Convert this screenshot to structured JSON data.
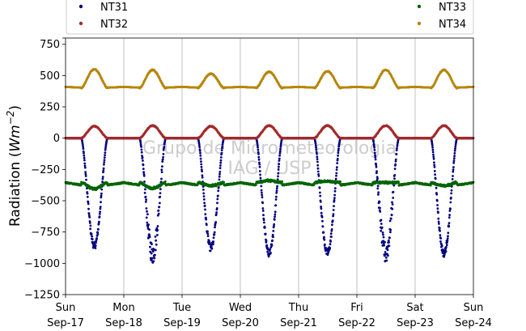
{
  "chart_data": {
    "type": "scatter",
    "title": "",
    "ylabel": "Radiation (Wm⁻²)",
    "ylabel_parts": {
      "prefix": "Radiation (",
      "var": "Wm",
      "exp": "−2",
      "suffix": ")"
    },
    "xlabel": "",
    "ylim": [
      -1250,
      800
    ],
    "xlim": [
      0,
      7
    ],
    "grid": {
      "x": true,
      "y": false
    },
    "legend": {
      "placement": "top",
      "columns": 2
    },
    "y_ticks": [
      800,
      750,
      500,
      250,
      0,
      -250,
      -500,
      -750,
      -1000,
      -1250
    ],
    "y_tick_labels": [
      "",
      "750",
      "500",
      "250",
      "0",
      "−250",
      "−500",
      "−750",
      "−1000",
      "−1250"
    ],
    "x_ticks": [
      {
        "x": 0,
        "day": "Sun",
        "date": "Sep-17"
      },
      {
        "x": 1,
        "day": "Mon",
        "date": "Sep-18"
      },
      {
        "x": 2,
        "day": "Tue",
        "date": "Sep-19"
      },
      {
        "x": 3,
        "day": "Wed",
        "date": "Sep-20"
      },
      {
        "x": 4,
        "day": "Thu",
        "date": "Sep-21"
      },
      {
        "x": 5,
        "day": "Fri",
        "date": "Sep-22"
      },
      {
        "x": 6,
        "day": "Sat",
        "date": "Sep-23"
      },
      {
        "x": 7,
        "day": "Sun",
        "date": "Sep-24"
      }
    ],
    "watermark": [
      "Grupo de Micrometeorologia",
      "IAG / USP"
    ],
    "series": [
      {
        "name": "NT31",
        "color": "#000080",
        "base": 0,
        "night": 0,
        "peaks": [
          -860,
          -920,
          -880,
          -920,
          -920,
          -920,
          -920
        ]
      },
      {
        "name": "NT32",
        "color": "#a52a2a",
        "base": 0,
        "night": 0,
        "peaks": [
          95,
          100,
          95,
          100,
          100,
          100,
          100
        ]
      },
      {
        "name": "NT33",
        "color": "#006400",
        "base": -355,
        "night": -400,
        "peaks": [
          -405,
          -400,
          -380,
          -340,
          -345,
          -355,
          -380
        ]
      },
      {
        "name": "NT34",
        "color": "#b8860b",
        "base": 400,
        "night": 410,
        "peaks": [
          550,
          545,
          515,
          530,
          535,
          545,
          545
        ]
      }
    ]
  }
}
